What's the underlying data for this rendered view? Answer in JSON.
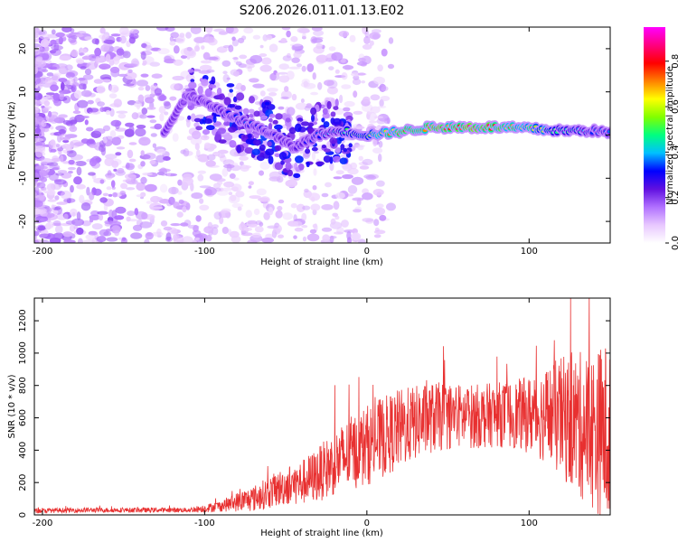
{
  "title": "S206.2026.011.01.13.E02",
  "chart_data": [
    {
      "type": "heatmap",
      "xlabel": "Height of straight line (km)",
      "ylabel": "Frequency (Hz)",
      "xlim": [
        -205,
        150
      ],
      "ylim": [
        -25,
        25
      ],
      "xticks": [
        -200,
        -100,
        0,
        100
      ],
      "yticks": [
        20,
        10,
        0,
        -10,
        -20
      ],
      "colorbar": {
        "label": "Normalized spectral amplitude",
        "range": [
          0,
          0.95
        ],
        "ticks": [
          0.0,
          0.2,
          0.4,
          0.6,
          0.8
        ],
        "tick_labels": [
          "0.0",
          "0.2",
          "0.4",
          "0.6",
          "0.8"
        ],
        "colormap": [
          "#ffffff",
          "#e8c8ff",
          "#b070ff",
          "#6010e0",
          "#0000ff",
          "#00c0ff",
          "#00ff80",
          "#80ff00",
          "#ffff00",
          "#ff8000",
          "#ff0000",
          "#ff0080",
          "#ff00ff"
        ]
      },
      "description_points": {
        "dominant_track_x": [
          -125,
          -110,
          -90,
          -75,
          -60,
          -45,
          -30,
          -15,
          0,
          20,
          40,
          60,
          80,
          100,
          120,
          140,
          150
        ],
        "dominant_track_freq": [
          0.5,
          9.5,
          5.5,
          3.0,
          0.5,
          -3.0,
          0.0,
          1.0,
          0.0,
          0.8,
          1.8,
          1.8,
          1.8,
          1.5,
          1.0,
          1.0,
          0.5
        ],
        "dominant_track_amplitude": [
          0.25,
          0.2,
          0.3,
          0.35,
          0.3,
          0.25,
          0.35,
          0.5,
          0.6,
          0.8,
          0.85,
          0.9,
          0.85,
          0.75,
          0.5,
          0.4,
          0.35
        ]
      }
    },
    {
      "type": "line",
      "xlabel": "Height of straight line (km)",
      "ylabel": "SNR (10 * v/v)",
      "xlim": [
        -205,
        150
      ],
      "ylim": [
        0,
        1340
      ],
      "xticks": [
        -200,
        -100,
        0,
        100
      ],
      "yticks": [
        0,
        200,
        400,
        600,
        800,
        1000,
        1200
      ],
      "color": "#e83030",
      "series": [
        {
          "name": "SNR",
          "x": [
            -205,
            -190,
            -170,
            -150,
            -130,
            -110,
            -100,
            -90,
            -80,
            -70,
            -60,
            -50,
            -40,
            -30,
            -20,
            -10,
            0,
            10,
            20,
            30,
            40,
            50,
            60,
            70,
            80,
            90,
            100,
            110,
            120,
            130,
            140,
            150
          ],
          "mean": [
            25,
            28,
            30,
            30,
            30,
            30,
            40,
            55,
            80,
            100,
            140,
            180,
            200,
            250,
            320,
            380,
            430,
            480,
            530,
            570,
            600,
            610,
            610,
            610,
            620,
            620,
            620,
            620,
            600,
            560,
            520,
            500
          ],
          "spread": [
            15,
            15,
            15,
            15,
            15,
            15,
            25,
            35,
            60,
            80,
            100,
            120,
            140,
            170,
            200,
            230,
            250,
            250,
            250,
            230,
            220,
            210,
            200,
            200,
            200,
            210,
            240,
            300,
            380,
            450,
            500,
            600
          ]
        }
      ]
    }
  ]
}
